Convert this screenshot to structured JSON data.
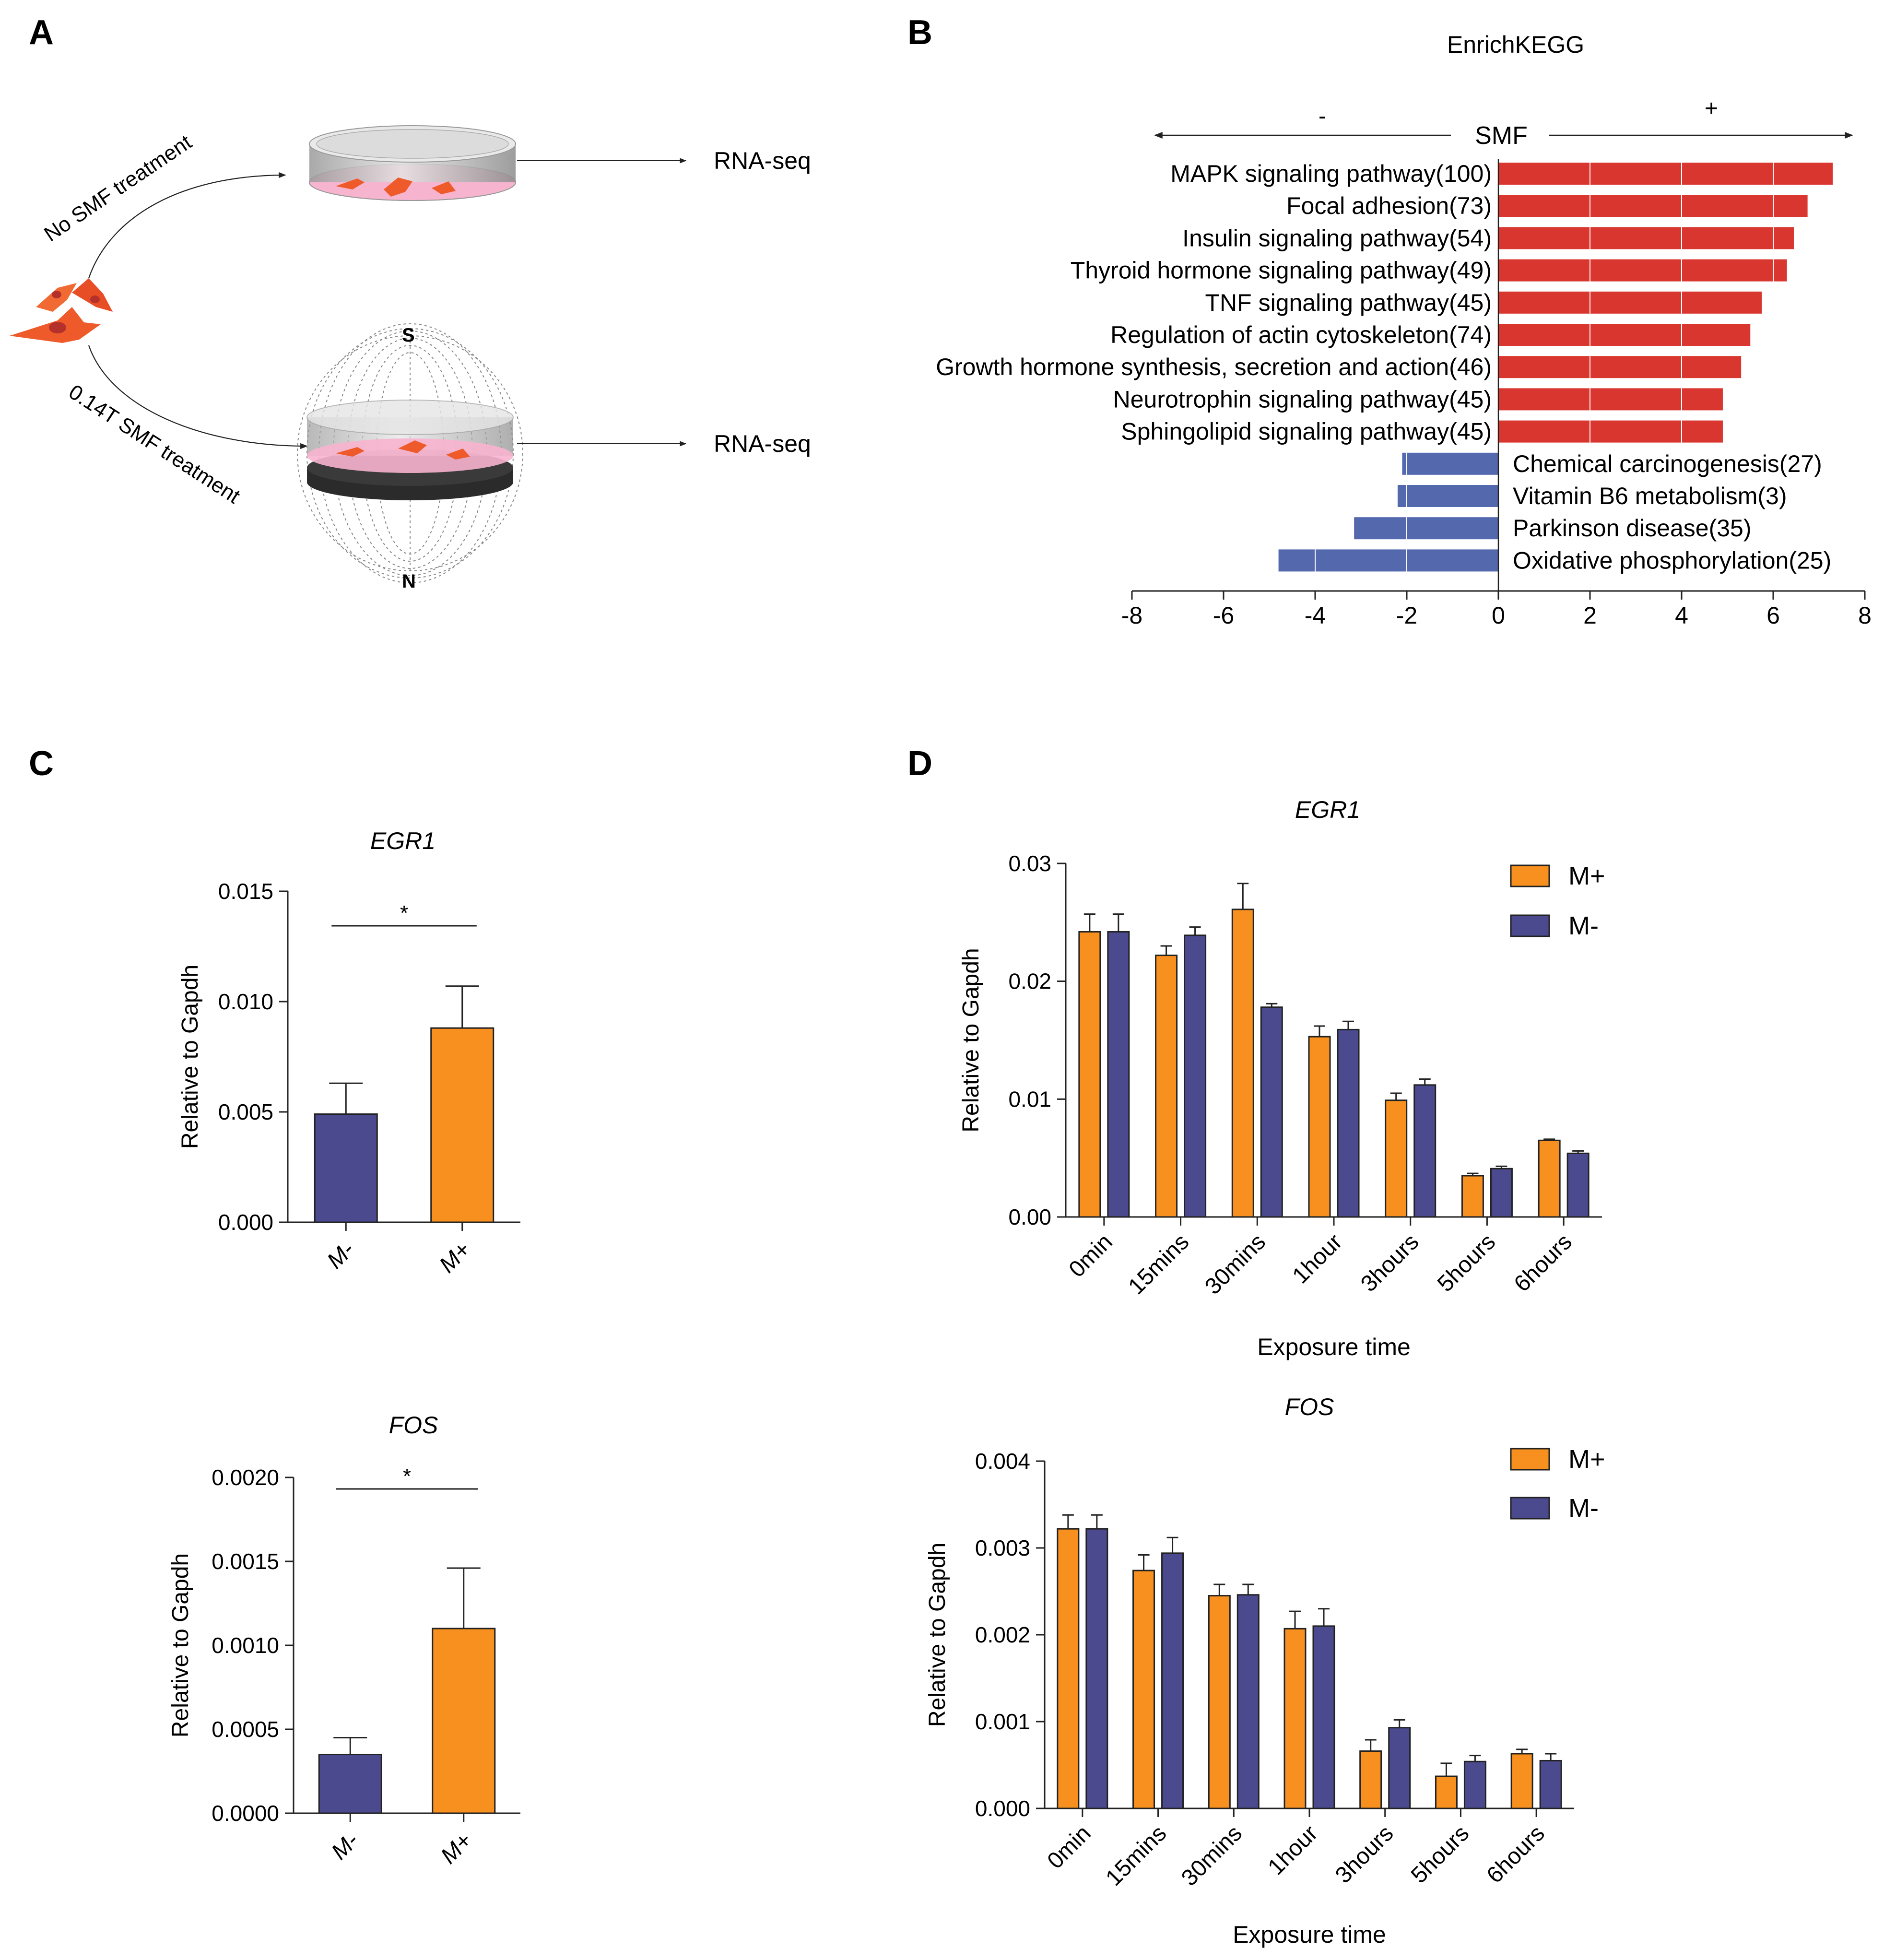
{
  "panels": {
    "A": {
      "letter": "A",
      "label_no_smf": "No SMF treatment",
      "label_smf": "0.14T SMF treatment",
      "rna_seq_top": "RNA-seq",
      "rna_seq_bottom": "RNA-seq",
      "magnet_s": "S",
      "magnet_n": "N"
    },
    "B": {
      "letter": "B"
    },
    "C": {
      "letter": "C"
    },
    "D": {
      "letter": "D"
    }
  },
  "colors": {
    "up_red": "#D8362E",
    "down_blue": "#5468AE",
    "orange": "#F7901E",
    "navy": "#4B4A8E",
    "dish_pink": "#F7B4CE",
    "cell_orange": "#EF5A2B",
    "dish_gray": "#C9C9C9",
    "magnet_black": "#2B2B2B"
  },
  "chart_data": [
    {
      "id": "kegg",
      "type": "bar",
      "orientation": "horizontal",
      "title": "EnrichKEGG",
      "direction_label": "SMF",
      "minus_label": "-",
      "plus_label": "+",
      "xlim": [
        -8,
        8
      ],
      "xticks": [
        "-8",
        "-6",
        "-4",
        "-2",
        "0",
        "2",
        "4",
        "6",
        "8"
      ],
      "categories": [
        "MAPK signaling pathway(100)",
        "Focal adhesion(73)",
        "Insulin signaling pathway(54)",
        "Thyroid hormone signaling pathway(49)",
        "TNF signaling pathway(45)",
        "Regulation of actin cytoskeleton(74)",
        "Growth hormone synthesis, secretion and action(46)",
        "Neurotrophin signaling pathway(45)",
        "Sphingolipid signaling pathway(45)",
        "Chemical carcinogenesis(27)",
        "Vitamin B6 metabolism(3)",
        "Parkinson disease(35)",
        "Oxidative phosphorylation(25)"
      ],
      "values": [
        7.3,
        6.75,
        6.45,
        6.3,
        5.75,
        5.5,
        5.3,
        4.9,
        4.9,
        -2.1,
        -2.2,
        -3.15,
        -4.8
      ]
    },
    {
      "id": "c-egr1",
      "type": "bar",
      "title": "EGR1",
      "ylabel": "Relative to Gapdh",
      "categories": [
        "M-",
        "M+"
      ],
      "values": [
        0.0049,
        0.0088
      ],
      "errors": [
        0.0014,
        0.0019
      ],
      "bar_colors": [
        "navy",
        "orange"
      ],
      "ylim": [
        0,
        0.015
      ],
      "yticks": [
        "0.000",
        "0.005",
        "0.010",
        "0.015"
      ],
      "significance": "*"
    },
    {
      "id": "c-fos",
      "type": "bar",
      "title": "FOS",
      "ylabel": "Relative to Gapdh",
      "categories": [
        "M-",
        "M+"
      ],
      "values": [
        0.00035,
        0.0011
      ],
      "errors": [
        0.0001,
        0.00036
      ],
      "bar_colors": [
        "navy",
        "orange"
      ],
      "ylim": [
        0,
        0.002
      ],
      "yticks": [
        "0.0000",
        "0.0005",
        "0.0010",
        "0.0015",
        "0.0020"
      ],
      "significance": "*"
    },
    {
      "id": "d-egr1",
      "type": "bar",
      "title": "EGR1",
      "xlabel": "Exposure time",
      "ylabel": "Relative to Gapdh",
      "categories": [
        "0min",
        "15mins",
        "30mins",
        "1hour",
        "3hours",
        "5hours",
        "6hours"
      ],
      "series": [
        {
          "name": "M+",
          "color": "orange",
          "values": [
            0.0242,
            0.0222,
            0.0261,
            0.0153,
            0.0099,
            0.0035,
            0.0065
          ],
          "errors": [
            0.0015,
            0.0008,
            0.0022,
            0.0009,
            0.0006,
            0.0002,
            0.0001
          ]
        },
        {
          "name": "M-",
          "color": "navy",
          "values": [
            0.0242,
            0.0239,
            0.0178,
            0.0159,
            0.0112,
            0.0041,
            0.0054
          ],
          "errors": [
            0.0015,
            0.0007,
            0.0003,
            0.0007,
            0.0005,
            0.0002,
            0.0002
          ]
        }
      ],
      "ylim": [
        0,
        0.03
      ],
      "yticks": [
        "0.00",
        "0.01",
        "0.02",
        "0.03"
      ]
    },
    {
      "id": "d-fos",
      "type": "bar",
      "title": "FOS",
      "xlabel": "Exposure time",
      "ylabel": "Relative to Gapdh",
      "categories": [
        "0min",
        "15mins",
        "30mins",
        "1hour",
        "3hours",
        "5hours",
        "6hours"
      ],
      "series": [
        {
          "name": "M+",
          "color": "orange",
          "values": [
            0.00322,
            0.00274,
            0.00245,
            0.00207,
            0.00066,
            0.00037,
            0.00063
          ],
          "errors": [
            0.00016,
            0.00018,
            0.00013,
            0.0002,
            0.00013,
            0.00015,
            5e-05
          ]
        },
        {
          "name": "M-",
          "color": "navy",
          "values": [
            0.00322,
            0.00294,
            0.00246,
            0.0021,
            0.00093,
            0.00054,
            0.00055
          ],
          "errors": [
            0.00016,
            0.00018,
            0.00012,
            0.0002,
            9e-05,
            7e-05,
            8e-05
          ]
        }
      ],
      "ylim": [
        0,
        0.004
      ],
      "yticks": [
        "0.000",
        "0.001",
        "0.002",
        "0.003",
        "0.004"
      ]
    }
  ]
}
